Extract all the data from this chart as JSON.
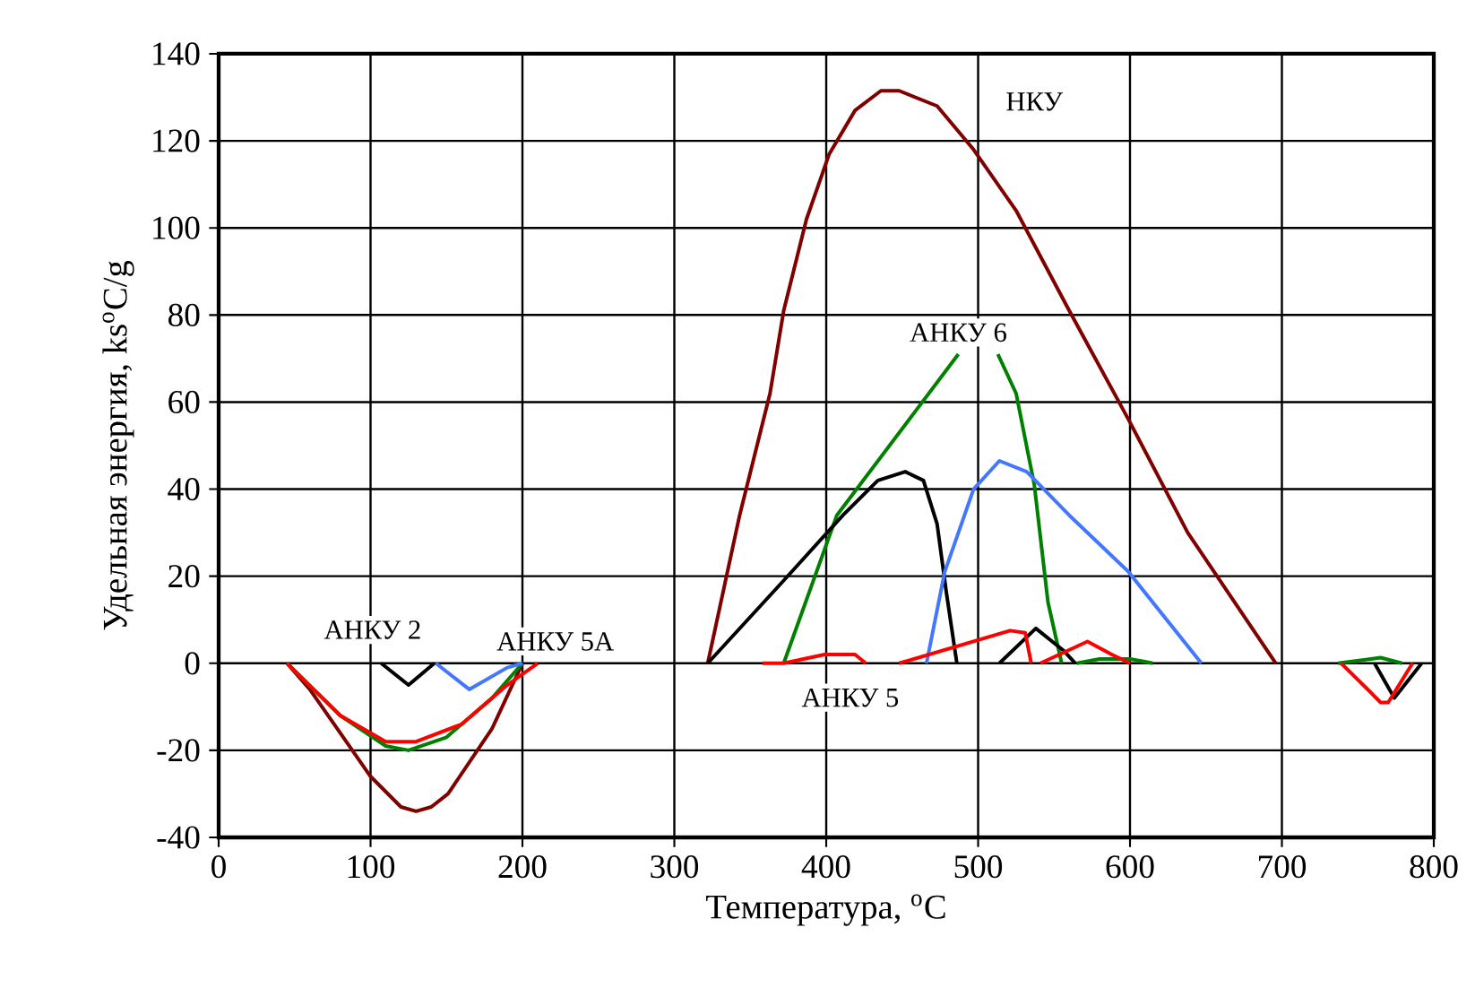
{
  "chart_data": {
    "type": "line",
    "xlabel": "Температура, $^{o}$C",
    "ylabel": "Удельная энергия, ks$^{o}$C/g",
    "xlim": [
      0,
      800
    ],
    "ylim": [
      -40,
      140
    ],
    "xticks": [
      0,
      100,
      200,
      300,
      400,
      500,
      600,
      700,
      800
    ],
    "yticks": [
      -40,
      -20,
      0,
      20,
      40,
      60,
      80,
      100,
      120,
      140
    ],
    "grid": true,
    "marker": "none",
    "line_style": "solid",
    "series": [
      {
        "color": "#800000",
        "x": [
          45,
          60,
          80,
          100,
          120,
          130,
          140,
          151,
          180,
          200,
          260,
          322,
          343,
          363,
          372,
          387,
          402,
          419,
          436,
          448,
          473,
          497,
          525,
          560,
          599,
          638,
          696
        ],
        "values": [
          0,
          -6,
          -16,
          -26,
          -33,
          -34,
          -33,
          -30,
          -15,
          0,
          null,
          0,
          34,
          62,
          81,
          102,
          117,
          127,
          131.5,
          131.5,
          128,
          118,
          104,
          81,
          56,
          30,
          0
        ]
      },
      {
        "color": "#008000",
        "x": [
          45,
          80,
          110,
          125,
          150,
          180,
          200,
          280,
          372,
          407,
          446,
          487,
          500,
          513,
          525,
          537,
          546,
          555,
          560,
          565,
          580,
          600,
          615,
          680,
          737,
          765,
          779
        ],
        "values": [
          0,
          -12,
          -19,
          -20,
          -17,
          -8,
          0,
          null,
          0,
          34,
          52,
          71,
          null,
          71,
          62,
          41,
          14,
          0,
          null,
          0,
          1,
          1,
          0,
          null,
          0,
          1.3,
          0
        ]
      },
      {
        "color": "#000000",
        "x": [
          107,
          125,
          142,
          230,
          322,
          372,
          411,
          434,
          452,
          464,
          473,
          479,
          486,
          500,
          514,
          538,
          556,
          564,
          680,
          761,
          774,
          792
        ],
        "values": [
          0,
          -5,
          0,
          null,
          0,
          19,
          34,
          42,
          44,
          42,
          32,
          16.5,
          0,
          null,
          0,
          8,
          3,
          0,
          null,
          0,
          -8,
          0
        ]
      },
      {
        "color": "#4477ff",
        "x": [
          143,
          165,
          190,
          200,
          330,
          466,
          478,
          497,
          514,
          532,
          560,
          599,
          647
        ],
        "values": [
          0,
          -6,
          -1,
          0,
          null,
          0,
          21,
          40,
          46.5,
          44,
          34,
          21,
          0
        ]
      },
      {
        "color": "#ff0000",
        "x": [
          45,
          80,
          110,
          130,
          160,
          190,
          210,
          300,
          358,
          372,
          399,
          419,
          426,
          437,
          448,
          521,
          531,
          535,
          538,
          541,
          572,
          588,
          600,
          680,
          739,
          755,
          765,
          770,
          786
        ],
        "values": [
          0,
          -12,
          -18,
          -18,
          -14,
          -5,
          0,
          null,
          0,
          0,
          2,
          2,
          0,
          null,
          0,
          7.5,
          7,
          0,
          null,
          0,
          5,
          2,
          0,
          null,
          0,
          -5.5,
          -9,
          -9,
          0
        ]
      }
    ],
    "annotations": [
      {
        "text": "НКУ",
        "x": 537,
        "y": 129
      },
      {
        "text": "АНКУ 6",
        "x": 487,
        "y": 71
      },
      {
        "text": "АНКУ 2",
        "x": 125,
        "y": -5
      },
      {
        "text": "АНКУ 5А",
        "x": 165,
        "y": -6
      },
      {
        "text": "АНКУ 5",
        "x": 419,
        "y": 2
      }
    ]
  }
}
